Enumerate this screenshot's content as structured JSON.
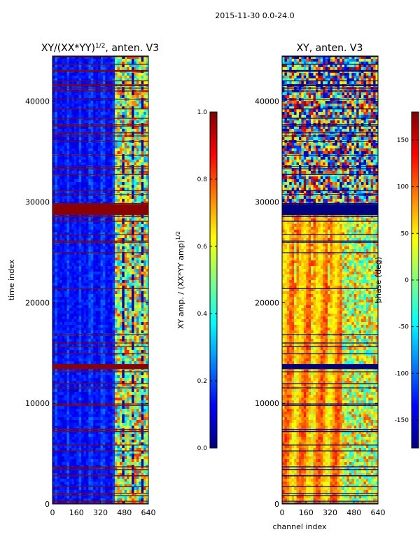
{
  "figure": {
    "suptitle": "2015-11-30 0.0-24.0"
  },
  "chart_data": [
    {
      "type": "heatmap",
      "title": "XY/(XX*YY)",
      "title_superscript": "1/2",
      "title_suffix": ", anten. V3",
      "xlabel": "",
      "ylabel": "time index",
      "xlim": [
        0,
        640
      ],
      "ylim": [
        0,
        44500
      ],
      "xticks": [
        "0",
        "160",
        "320",
        "480",
        "640"
      ],
      "yticks": [
        "0",
        "10000",
        "20000",
        "30000",
        "40000"
      ],
      "colormap": "jet",
      "colorbar": {
        "label": "XY amp. / (XX*YY amp)",
        "label_superscript": "1/2",
        "range": [
          0.0,
          1.0
        ],
        "ticks": [
          "0.0",
          "0.2",
          "0.4",
          "0.6",
          "0.8",
          "1.0"
        ]
      },
      "description_features": {
        "low_band_value": 0.12,
        "high_channel_region": [
          410,
          640
        ],
        "high_channel_value": 0.55,
        "flagged_rows_value": 1.0,
        "flagged_band": [
          28700,
          29800
        ],
        "flagged_band_2": [
          13400,
          13900
        ]
      }
    },
    {
      "type": "heatmap",
      "title": "XY, anten. V3",
      "xlabel": "channel index",
      "ylabel": "",
      "xlim": [
        0,
        640
      ],
      "ylim": [
        0,
        44500
      ],
      "xticks": [
        "0",
        "160",
        "320",
        "480",
        "640"
      ],
      "yticks": [
        "0",
        "10000",
        "20000",
        "30000",
        "40000"
      ],
      "colormap": "jet",
      "colorbar": {
        "label": "phase (deg)",
        "range": [
          -180,
          180
        ],
        "ticks": [
          "-150",
          "-100",
          "-50",
          "0",
          "50",
          "100",
          "150"
        ]
      }
    }
  ],
  "palette": {
    "jet_stops": [
      "#000080",
      "#0000ff",
      "#0080ff",
      "#00ffff",
      "#80ff80",
      "#ffff00",
      "#ff8000",
      "#ff0000",
      "#800000"
    ],
    "axis_color": "#000000",
    "background": "#ffffff"
  }
}
